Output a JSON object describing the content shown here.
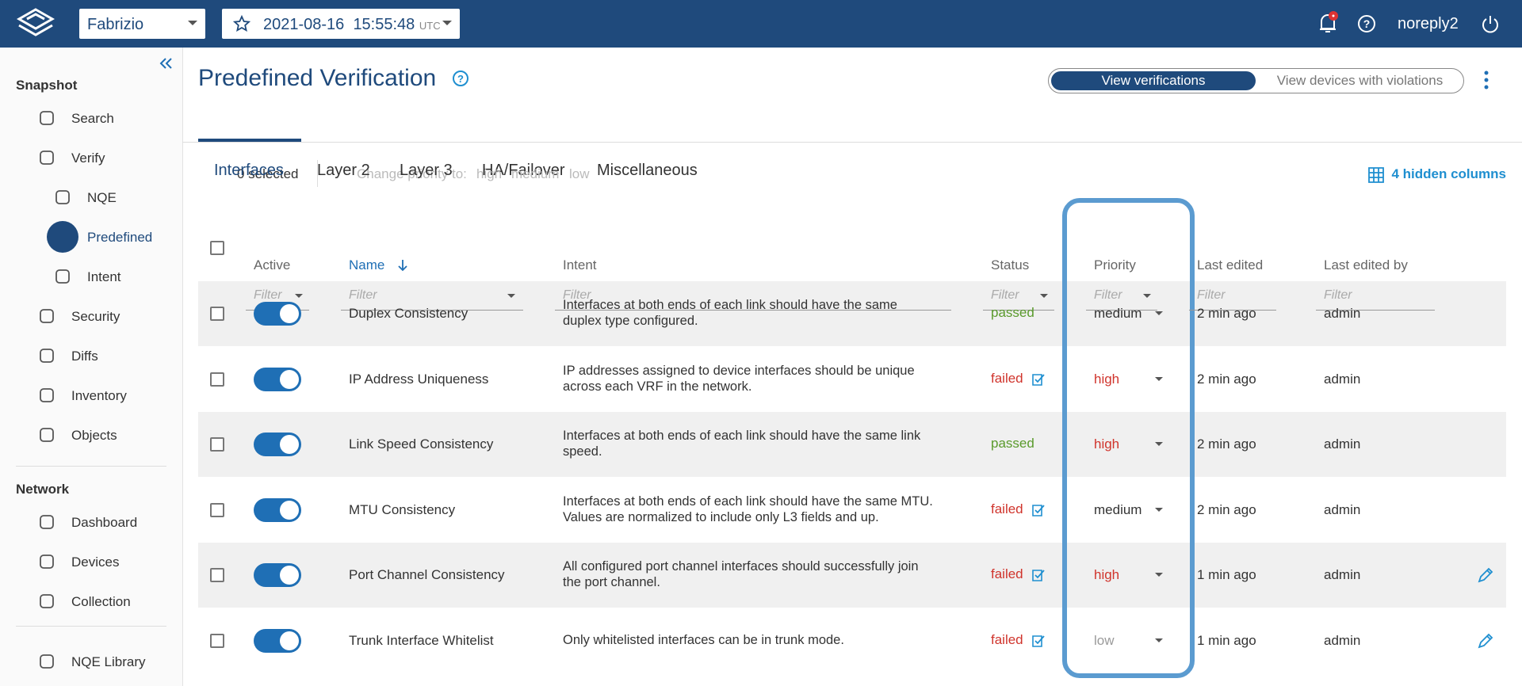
{
  "topbar": {
    "workspace": "Fabrizio",
    "snapshot_date": "2021-08-16",
    "snapshot_time": "15:55:48",
    "timezone": "UTC",
    "user": "noreply2"
  },
  "sidebar": {
    "sections": [
      {
        "title": "Snapshot",
        "items": [
          {
            "label": "Search",
            "level": 0
          },
          {
            "label": "Verify",
            "level": 0
          },
          {
            "label": "NQE",
            "level": 1
          },
          {
            "label": "Predefined",
            "level": 1,
            "selected": true
          },
          {
            "label": "Intent",
            "level": 1
          },
          {
            "label": "Security",
            "level": 0
          },
          {
            "label": "Diffs",
            "level": 0
          },
          {
            "label": "Inventory",
            "level": 0
          },
          {
            "label": "Objects",
            "level": 0
          }
        ]
      },
      {
        "title": "Network",
        "items": [
          {
            "label": "Dashboard",
            "level": 0
          },
          {
            "label": "Devices",
            "level": 0
          },
          {
            "label": "Collection",
            "level": 0
          }
        ]
      }
    ],
    "footer_item": "NQE Library"
  },
  "header": {
    "title": "Predefined Verification",
    "toggle": [
      "View verifications",
      "View devices with violations"
    ]
  },
  "tabs": [
    "Interfaces",
    "Layer 2",
    "Layer 3",
    "HA/Failover",
    "Miscellaneous"
  ],
  "toolbar": {
    "selected": "0 selected",
    "change_priority": "Change priority to:",
    "priorities": [
      "high",
      "medium",
      "low"
    ],
    "hidden_columns": "4 hidden columns"
  },
  "table": {
    "columns": [
      "Active",
      "Name",
      "Intent",
      "Status",
      "Priority",
      "Last edited",
      "Last edited by"
    ],
    "filter_placeholder": "Filter",
    "rows": [
      {
        "name": "Duplex Consistency",
        "intent": [
          "Interfaces at both ends of each link should have the same",
          "duplex type configured."
        ],
        "status": "passed",
        "status_color": "#5a9a2c",
        "flagged": false,
        "priority": "medium",
        "priority_color": "#333333",
        "last_edited": "2 min ago",
        "last_edited_by": "admin",
        "editable": false
      },
      {
        "name": "IP Address Uniqueness",
        "intent": [
          "IP addresses assigned to device interfaces should be unique",
          "across each VRF in the network."
        ],
        "status": "failed",
        "status_color": "#d0342c",
        "flagged": true,
        "priority": "high",
        "priority_color": "#d0342c",
        "last_edited": "2 min ago",
        "last_edited_by": "admin",
        "editable": false
      },
      {
        "name": "Link Speed Consistency",
        "intent": [
          "Interfaces at both ends of each link should have the same link",
          "speed."
        ],
        "status": "passed",
        "status_color": "#5a9a2c",
        "flagged": false,
        "priority": "high",
        "priority_color": "#d0342c",
        "last_edited": "2 min ago",
        "last_edited_by": "admin",
        "editable": false
      },
      {
        "name": "MTU Consistency",
        "intent": [
          "Interfaces at both ends of each link should have the same MTU.",
          "Values are normalized to include only L3 fields and up."
        ],
        "status": "failed",
        "status_color": "#d0342c",
        "flagged": true,
        "priority": "medium",
        "priority_color": "#333333",
        "last_edited": "2 min ago",
        "last_edited_by": "admin",
        "editable": false
      },
      {
        "name": "Port Channel Consistency",
        "intent": [
          "All configured port channel interfaces should successfully join",
          "the port channel."
        ],
        "status": "failed",
        "status_color": "#d0342c",
        "flagged": true,
        "priority": "high",
        "priority_color": "#d0342c",
        "last_edited": "1 min ago",
        "last_edited_by": "admin",
        "editable": true
      },
      {
        "name": "Trunk Interface Whitelist",
        "intent": [
          "Only whitelisted interfaces can be in trunk mode."
        ],
        "status": "failed",
        "status_color": "#d0342c",
        "flagged": true,
        "priority": "low",
        "priority_color": "#9a9a9a",
        "last_edited": "1 min ago",
        "last_edited_by": "admin",
        "editable": true
      }
    ]
  }
}
